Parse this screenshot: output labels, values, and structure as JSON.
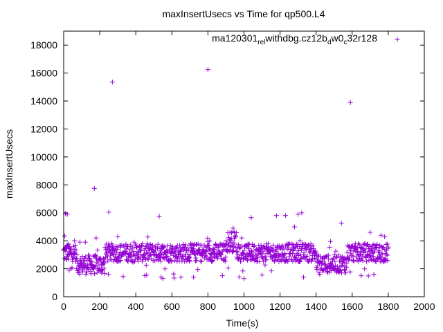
{
  "chart_data": {
    "type": "scatter",
    "title": "maxInsertUsecs vs Time for qp500.L4",
    "xlabel": "Time(s)",
    "ylabel": "maxInsertUsecs",
    "xlim": [
      0,
      2000
    ],
    "ylim": [
      0,
      19000
    ],
    "x_ticks": [
      0,
      200,
      400,
      600,
      800,
      1000,
      1200,
      1400,
      1600,
      1800,
      2000
    ],
    "y_ticks": [
      0,
      2000,
      4000,
      6000,
      8000,
      10000,
      12000,
      14000,
      16000,
      18000
    ],
    "grid": false,
    "legend_position": "top-right",
    "series": [
      {
        "name": "ma120301_rel_withdbg.cz12b_dw0_c32r128",
        "legend_parts": {
          "base": "ma120301",
          "sub1": "rel",
          "mid1": "w",
          "mid2": "ithdbg.cz12b",
          "sub2": "d",
          "mid3": "w0",
          "sub3": "c",
          "tail": "32r128"
        },
        "color": "#9400d3",
        "marker": "plus",
        "x_range": [
          0,
          1800
        ],
        "typical_band": [
          2500,
          3800
        ],
        "points": [
          [
            5,
            4350
          ],
          [
            10,
            5950
          ],
          [
            20,
            5900
          ],
          [
            30,
            1900
          ],
          [
            40,
            2000
          ],
          [
            60,
            4000
          ],
          [
            90,
            3900
          ],
          [
            120,
            3900
          ],
          [
            170,
            7750
          ],
          [
            180,
            4200
          ],
          [
            250,
            6050
          ],
          [
            270,
            15350
          ],
          [
            300,
            4300
          ],
          [
            330,
            1450
          ],
          [
            450,
            1500
          ],
          [
            460,
            1550
          ],
          [
            530,
            5750
          ],
          [
            540,
            1400
          ],
          [
            550,
            1300
          ],
          [
            650,
            1400
          ],
          [
            720,
            1400
          ],
          [
            800,
            16250
          ],
          [
            810,
            4000
          ],
          [
            880,
            1500
          ],
          [
            940,
            4900
          ],
          [
            1000,
            1300
          ],
          [
            1040,
            5650
          ],
          [
            1100,
            1550
          ],
          [
            1180,
            5800
          ],
          [
            1230,
            5800
          ],
          [
            1280,
            5000
          ],
          [
            1300,
            5900
          ],
          [
            1320,
            6000
          ],
          [
            1330,
            1400
          ],
          [
            1420,
            1600
          ],
          [
            1480,
            3950
          ],
          [
            1540,
            5250
          ],
          [
            1560,
            1700
          ],
          [
            1590,
            13900
          ],
          [
            1650,
            1500
          ],
          [
            1700,
            4600
          ],
          [
            1720,
            1600
          ],
          [
            1760,
            4400
          ],
          [
            1780,
            4300
          ]
        ]
      }
    ]
  }
}
